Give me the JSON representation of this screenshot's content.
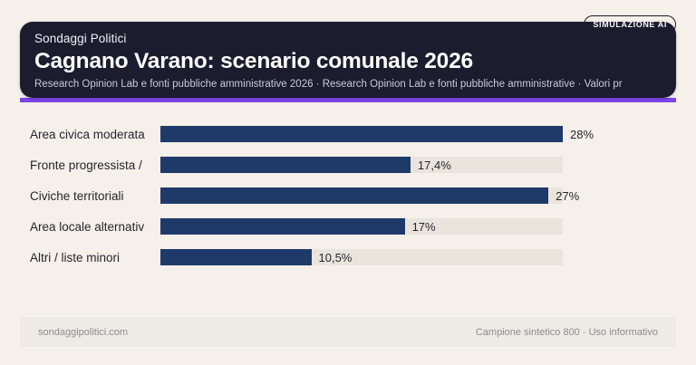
{
  "header": {
    "badge": "SIMULAZIONE AI",
    "kicker": "Sondaggi Politici",
    "title": "Cagnano Varano: scenario comunale 2026",
    "subtitle": "Research Opinion Lab e fonti pubbliche amministrative 2026 · Research Opinion Lab e fonti pubbliche amministrative · Valori pr"
  },
  "chart_data": {
    "type": "bar",
    "orientation": "horizontal",
    "title": "Cagnano Varano: scenario comunale 2026",
    "categories": [
      "Area civica moderata",
      "Fronte progressista /",
      "Civiche territoriali",
      "Area locale alternativ",
      "Altri / liste minori"
    ],
    "values": [
      28,
      17.4,
      27,
      17,
      10.5
    ],
    "value_labels": [
      "28%",
      "17,4%",
      "27%",
      "17%",
      "10,5%"
    ],
    "xlim": [
      0,
      28
    ],
    "grid": false,
    "legend": null,
    "value_label_position": "right-of-bar"
  },
  "footer": {
    "left": "sondaggipolitici.com",
    "right": "Campione sintetico 800 · Uso informativo"
  },
  "colors": {
    "background": "#f5f0e9",
    "card": "#1d1b2e",
    "accent": "#7c45e6",
    "bar": "#1f3a69",
    "track": "#e9e5dd",
    "footer_bg": "#edebe4",
    "footer_text": "#8d8d90",
    "title_text": "#ffffff",
    "subtitle_text": "#cdc9dc",
    "label_text": "#26262f"
  }
}
